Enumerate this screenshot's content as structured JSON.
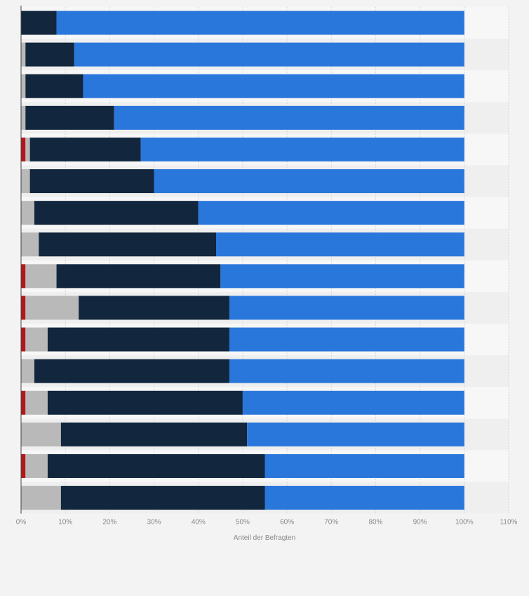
{
  "chart_data": {
    "type": "bar",
    "orientation": "horizontal",
    "stacked": true,
    "categories": [
      "",
      "",
      "",
      "",
      "",
      "",
      "",
      "",
      "",
      "",
      "",
      "",
      "",
      "",
      "",
      ""
    ],
    "series": [
      {
        "color": "#b5161b",
        "values": [
          0,
          0,
          0,
          0,
          1,
          0,
          0,
          0,
          1,
          1,
          1,
          0,
          1,
          0,
          1,
          0
        ]
      },
      {
        "color": "#b9b9b9",
        "values": [
          0,
          1,
          1,
          1,
          1,
          2,
          3,
          4,
          7,
          12,
          5,
          3,
          5,
          9,
          5,
          9
        ]
      },
      {
        "color": "#12263d",
        "values": [
          8,
          11,
          13,
          20,
          25,
          28,
          37,
          40,
          37,
          34,
          41,
          44,
          44,
          42,
          49,
          46
        ]
      },
      {
        "color": "#2a77db",
        "values": [
          92,
          88,
          86,
          79,
          73,
          70,
          60,
          56,
          55,
          53,
          53,
          53,
          50,
          49,
          45,
          45
        ]
      }
    ],
    "xlabel": "Anteil der Befragten",
    "xlim": [
      0,
      110
    ],
    "xticks": [
      0,
      10,
      20,
      30,
      40,
      50,
      60,
      70,
      80,
      90,
      100,
      110
    ],
    "xtick_labels": [
      "0%",
      "10%",
      "20%",
      "30%",
      "40%",
      "50%",
      "60%",
      "70%",
      "80%",
      "90%",
      "100%",
      "110%"
    ],
    "grid": true,
    "legend": "none",
    "colors": {
      "page_background": "#f3f3f3",
      "plot_background": "#f7f7f7",
      "band_alternate": "#efefef",
      "gridline": "#d6d6d6",
      "axis_line": "#444444",
      "tick_text": "#888888"
    }
  }
}
